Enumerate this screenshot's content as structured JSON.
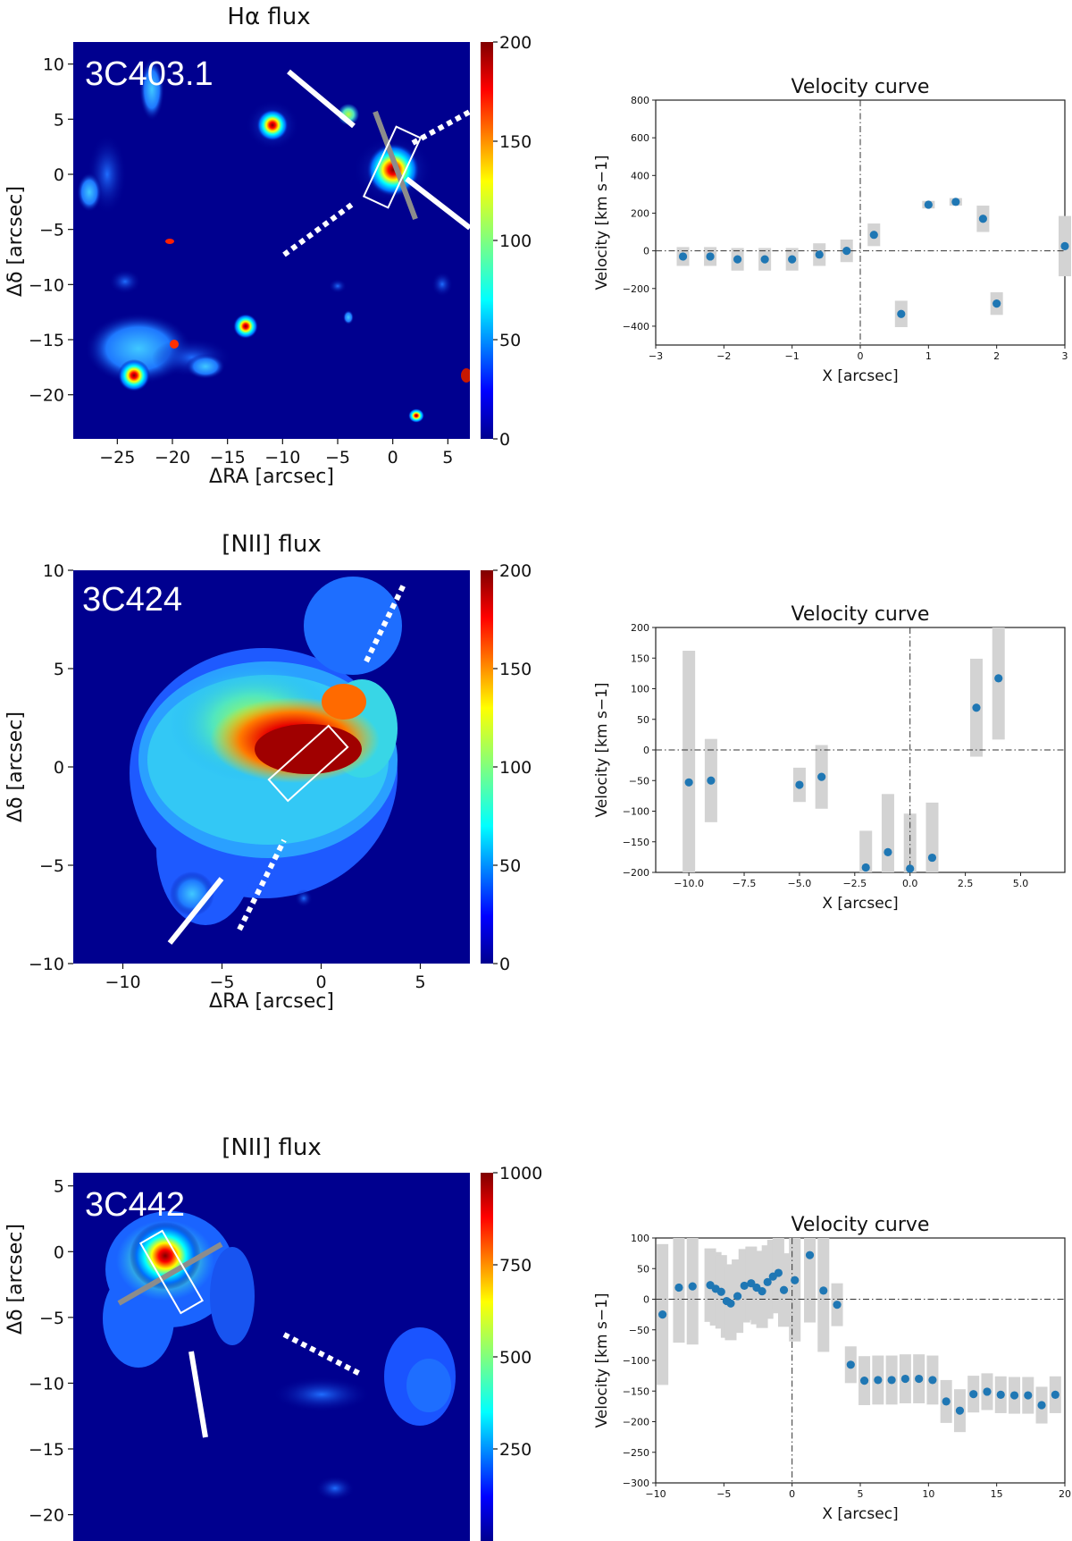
{
  "colors": {
    "map_background": "#00008f",
    "point": "#1f77b4",
    "error_bar": "#d3d3d3",
    "marker_white": "#ffffff",
    "marker_gray": "#8c8c8c"
  },
  "chart_data": [
    {
      "type": "heatmap",
      "title": "Hα flux",
      "source_label": "3C403.1",
      "xlabel": "ΔRA [arcsec]",
      "ylabel": "Δδ [arcsec]",
      "xticks": [
        "−25",
        "−20",
        "−15",
        "−10",
        "−5",
        "0",
        "5"
      ],
      "yticks": [
        "10",
        "5",
        "0",
        "−5",
        "−10",
        "−15",
        "−20"
      ],
      "colorbar_ticks": [
        "200",
        "150",
        "100",
        "50",
        "0"
      ],
      "xlim": [
        -29,
        7
      ],
      "ylim": [
        -24,
        12
      ],
      "vlim": [
        0,
        200
      ]
    },
    {
      "type": "scatter",
      "title": "Velocity curve",
      "xlabel": "X [arcsec]",
      "ylabel": "Velocity [km s−1]",
      "xticks": [
        "−3",
        "−2",
        "−1",
        "0",
        "1",
        "2",
        "3"
      ],
      "yticks": [
        "800",
        "600",
        "400",
        "200",
        "0",
        "−200",
        "−400"
      ],
      "xlim": [
        -3,
        3
      ],
      "ylim": [
        -500,
        800
      ],
      "x": [
        -2.6,
        -2.2,
        -1.8,
        -1.4,
        -1.0,
        -0.6,
        -0.2,
        0.2,
        0.6,
        1.0,
        1.4,
        1.8,
        2.0,
        3.0
      ],
      "y": [
        -30,
        -30,
        -45,
        -45,
        -45,
        -20,
        0,
        85,
        -335,
        245,
        260,
        170,
        -280,
        25
      ],
      "err": [
        50,
        50,
        60,
        60,
        60,
        60,
        60,
        60,
        70,
        20,
        20,
        70,
        60,
        160
      ]
    },
    {
      "type": "heatmap",
      "title": "[NII] flux",
      "source_label": "3C424",
      "xlabel": "ΔRA [arcsec]",
      "ylabel": "Δδ [arcsec]",
      "xticks": [
        "−10",
        "−5",
        "0",
        "5"
      ],
      "yticks": [
        "10",
        "5",
        "0",
        "−5",
        "−10"
      ],
      "colorbar_ticks": [
        "200",
        "150",
        "100",
        "50",
        "0"
      ],
      "xlim": [
        -12.5,
        7.5
      ],
      "ylim": [
        -10,
        10
      ],
      "vlim": [
        0,
        200
      ]
    },
    {
      "type": "scatter",
      "title": "Velocity curve",
      "xlabel": "X [arcsec]",
      "ylabel": "Velocity [km s−1]",
      "xticks": [
        "−10.0",
        "−7.5",
        "−5.0",
        "−2.5",
        "0.0",
        "2.5",
        "5.0"
      ],
      "yticks": [
        "200",
        "150",
        "100",
        "50",
        "0",
        "−50",
        "−100",
        "−150",
        "−200"
      ],
      "xlim": [
        -11.5,
        7
      ],
      "ylim": [
        -200,
        200
      ],
      "x": [
        -10.0,
        -9.0,
        -5.0,
        -4.0,
        -2.0,
        -1.0,
        0.0,
        1.0,
        3.0,
        4.0
      ],
      "y": [
        -53,
        -50,
        -57,
        -44,
        -192,
        -167,
        -194,
        -176,
        69,
        117
      ],
      "err": [
        215,
        68,
        28,
        52,
        60,
        95,
        90,
        90,
        80,
        100
      ]
    },
    {
      "type": "heatmap",
      "title": "[NII] flux",
      "source_label": "3C442",
      "xlabel": "",
      "ylabel": "Δδ [arcsec]",
      "xticks": [],
      "yticks": [
        "5",
        "0",
        "−5",
        "−10",
        "−15",
        "−20"
      ],
      "colorbar_ticks": [
        "1000",
        "750",
        "500",
        "250"
      ],
      "xlim": [
        -20,
        12
      ],
      "ylim": [
        -22,
        6
      ],
      "vlim": [
        0,
        1000
      ]
    },
    {
      "type": "scatter",
      "title": "Velocity curve",
      "xlabel": "X [arcsec]",
      "ylabel": "Velocity [km s−1]",
      "xticks": [
        "−10",
        "−5",
        "0",
        "5",
        "10",
        "15",
        "20"
      ],
      "yticks": [
        "100",
        "50",
        "0",
        "−50",
        "−100",
        "−150",
        "−200",
        "−250",
        "−300"
      ],
      "xlim": [
        -10,
        20
      ],
      "ylim": [
        -300,
        100
      ],
      "x": [
        -9.5,
        -8.3,
        -7.3,
        -6.0,
        -5.6,
        -5.2,
        -4.8,
        -4.5,
        -4.0,
        -3.5,
        -3.0,
        -2.6,
        -2.2,
        -1.8,
        -1.4,
        -1.0,
        -0.6,
        0.2,
        1.3,
        2.3,
        3.3,
        4.3,
        5.3,
        6.3,
        7.3,
        8.3,
        9.3,
        10.3,
        11.3,
        12.3,
        13.3,
        14.3,
        15.3,
        16.3,
        17.3,
        18.3,
        19.3
      ],
      "y": [
        -25,
        19,
        21,
        23,
        17,
        12,
        -3,
        -7,
        5,
        22,
        26,
        19,
        13,
        28,
        37,
        43,
        15,
        31,
        72,
        14,
        -9,
        -107,
        -133,
        -132,
        -132,
        -130,
        -130,
        -132,
        -167,
        -182,
        -155,
        -151,
        -156,
        -157,
        -157,
        -173,
        -156
      ],
      "err": [
        115,
        90,
        95,
        60,
        60,
        60,
        60,
        60,
        60,
        60,
        60,
        60,
        60,
        60,
        60,
        60,
        60,
        100,
        110,
        100,
        35,
        30,
        40,
        40,
        40,
        40,
        40,
        40,
        35,
        35,
        30,
        30,
        30,
        30,
        30,
        30,
        30
      ]
    }
  ]
}
